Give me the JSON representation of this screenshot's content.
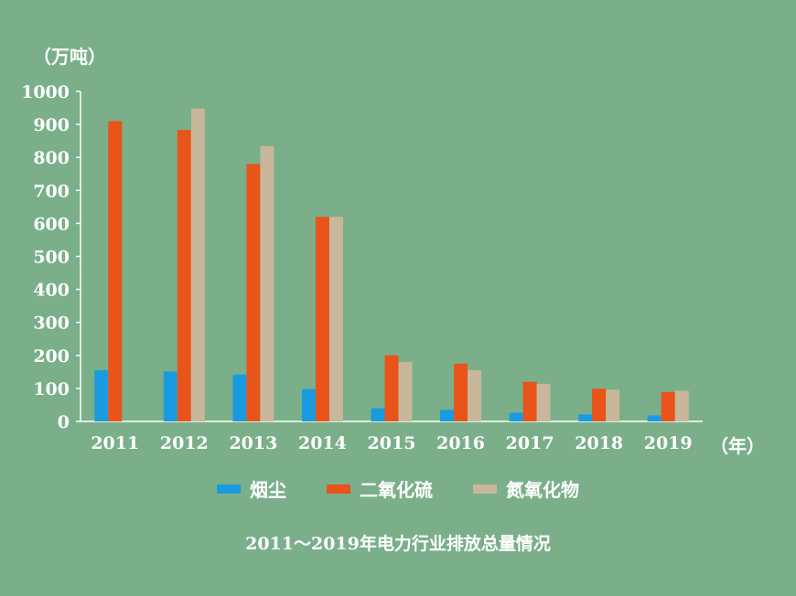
{
  "chart_data": {
    "type": "bar",
    "title": "2011～2019年电力行业排放总量情况",
    "ylabel": "（万吨）",
    "xlabel": "（年）",
    "ylim": [
      0,
      1000
    ],
    "yticks": [
      "0",
      "100",
      "200",
      "300",
      "400",
      "500",
      "600",
      "700",
      "800",
      "900",
      "1000"
    ],
    "categories": [
      "2011",
      "2012",
      "2013",
      "2014",
      "2015",
      "2016",
      "2017",
      "2018",
      "2019"
    ],
    "series": [
      {
        "name": "烟尘",
        "color": "#1a9be0",
        "values": [
          155,
          151,
          142,
          98,
          40,
          35,
          26,
          21,
          18
        ]
      },
      {
        "name": "二氧化硫",
        "color": "#e8541a",
        "values": [
          910,
          883,
          780,
          620,
          200,
          175,
          120,
          99,
          89
        ]
      },
      {
        "name": "氮氧化物",
        "color": "#c8b79a",
        "values": [
          null,
          948,
          834,
          620,
          180,
          155,
          114,
          96,
          93
        ]
      }
    ],
    "legend_position": "bottom",
    "grid": false
  }
}
